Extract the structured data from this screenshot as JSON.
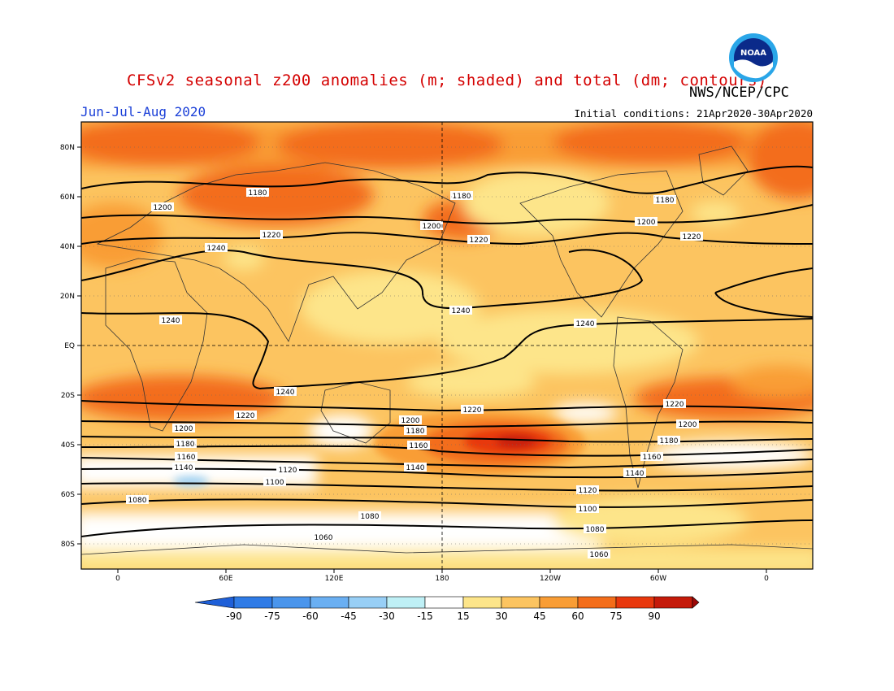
{
  "header": {
    "title": "CFSv2 seasonal z200 anomalies (m; shaded) and total (dm; contours)",
    "agency": "NWS/NCEP/CPC",
    "period": "Jun-Jul-Aug 2020",
    "initial_conditions": "Initial conditions: 21Apr2020-30Apr2020",
    "logo_text": "NOAA"
  },
  "axes": {
    "lat_labels": [
      "80N",
      "60N",
      "40N",
      "20N",
      "EQ",
      "20S",
      "40S",
      "60S",
      "80S"
    ],
    "lon_labels": [
      "0",
      "60E",
      "120E",
      "180",
      "120W",
      "60W",
      "0"
    ]
  },
  "colorbar": {
    "ticks": [
      "-90",
      "-75",
      "-60",
      "-45",
      "-30",
      "-15",
      "15",
      "30",
      "45",
      "60",
      "75",
      "90"
    ],
    "colors": [
      "#1e5fd8",
      "#2f7be6",
      "#4a95ec",
      "#6aaff2",
      "#98cff6",
      "#bff0f6",
      "#ffffff",
      "#fde58a",
      "#fcc460",
      "#f99d35",
      "#f36d1a",
      "#e8380d",
      "#c51a0a",
      "#9c0808"
    ]
  },
  "contours": [
    {
      "label": "1180",
      "positions": [
        "Jun 180 ring"
      ]
    },
    {
      "label": "1200"
    },
    {
      "label": "1220"
    },
    {
      "label": "1240"
    },
    {
      "label": "1160"
    },
    {
      "label": "1140"
    },
    {
      "label": "1120"
    },
    {
      "label": "1100"
    },
    {
      "label": "1080"
    },
    {
      "label": "1060"
    }
  ]
}
